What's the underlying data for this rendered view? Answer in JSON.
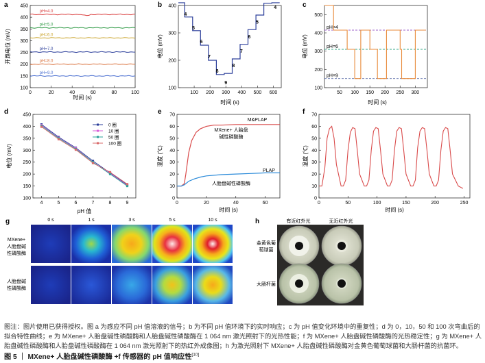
{
  "panels": {
    "a": {
      "letter": "a",
      "ylabel": "开路电位 (mV)",
      "xlabel": "时间 (s)"
    },
    "b": {
      "letter": "b",
      "ylabel": "电位 (mV)",
      "xlabel": "时间 (s)"
    },
    "c": {
      "letter": "c",
      "ylabel": "电位 (mV)",
      "xlabel": "时间 (s)"
    },
    "d": {
      "letter": "d",
      "ylabel": "电位 (mV)",
      "xlabel": "pH 值"
    },
    "e": {
      "letter": "e",
      "ylabel": "温度 (℃)",
      "xlabel": "时间 (s)",
      "label_top": "M&PLAP",
      "label_top2a": "MXene+ 人胎盘",
      "label_top2b": "碱性磷酸酶",
      "label_bot": "PLAP",
      "label_bot2": "人胎盘碱性磷酸酶"
    },
    "f": {
      "letter": "f",
      "ylabel": "温度 (℃)",
      "xlabel": "时间 (s)"
    },
    "g": {
      "letter": "g",
      "times": [
        "0 s",
        "1 s",
        "3 s",
        "5 s",
        "10 s"
      ],
      "row1_l1": "MXene+",
      "row1_l2": "人胎盘碱",
      "row1_l3": "性磷酸酶",
      "row2_l1": "人胎盘碱",
      "row2_l2": "性磷酸酶"
    },
    "h": {
      "letter": "h",
      "col1": "有近红外光",
      "col2": "无近红外光",
      "row1_l1": "金黄色葡",
      "row1_l2": "萄球菌",
      "row2": "大肠杆菌"
    }
  },
  "chart_data": [
    {
      "panel": "a",
      "type": "line",
      "xlim": [
        0,
        100
      ],
      "ylim": [
        100,
        450
      ],
      "xticks": [
        0,
        20,
        40,
        60,
        80,
        100
      ],
      "yticks": [
        100,
        150,
        200,
        250,
        300,
        350,
        400,
        450
      ],
      "series": [
        {
          "name": "pH=4.0",
          "color": "#d93b3b",
          "level": 412
        },
        {
          "name": "pH=5.0",
          "color": "#2f9a45",
          "level": 355
        },
        {
          "name": "pH=6.0",
          "color": "#c9a227",
          "level": 312
        },
        {
          "name": "pH=7.0",
          "color": "#2a3d9a",
          "level": 252
        },
        {
          "name": "pH=8.0",
          "color": "#d9703b",
          "level": 200
        },
        {
          "name": "pH=9.0",
          "color": "#4a6fd0",
          "level": 150
        }
      ]
    },
    {
      "panel": "b",
      "type": "line",
      "xlim": [
        0,
        650
      ],
      "ylim": [
        100,
        400
      ],
      "xticks": [
        100,
        200,
        300,
        400,
        500,
        600
      ],
      "yticks": [
        100,
        200,
        300,
        400
      ],
      "x": [
        0,
        40,
        40,
        90,
        90,
        140,
        140,
        190,
        190,
        240,
        240,
        290,
        290,
        340,
        340,
        390,
        390,
        440,
        440,
        490,
        490,
        540,
        540,
        590,
        590,
        640
      ],
      "y": [
        410,
        410,
        358,
        358,
        308,
        308,
        255,
        255,
        200,
        200,
        148,
        148,
        152,
        152,
        205,
        205,
        258,
        258,
        312,
        312,
        365,
        365,
        408,
        408,
        410,
        410
      ],
      "labels": [
        {
          "text": "4",
          "x": 45,
          "y": 362
        },
        {
          "text": "5",
          "x": 95,
          "y": 312
        },
        {
          "text": "6",
          "x": 145,
          "y": 262
        },
        {
          "text": "7",
          "x": 195,
          "y": 208
        },
        {
          "text": "8",
          "x": 245,
          "y": 155
        },
        {
          "text": "9",
          "x": 300,
          "y": 112
        },
        {
          "text": "8",
          "x": 348,
          "y": 175
        },
        {
          "text": "7",
          "x": 398,
          "y": 228
        },
        {
          "text": "6",
          "x": 448,
          "y": 280
        },
        {
          "text": "5",
          "x": 498,
          "y": 334
        },
        {
          "text": "4",
          "x": 612,
          "y": 388
        }
      ]
    },
    {
      "panel": "c",
      "type": "line",
      "xlim": [
        0,
        340
      ],
      "ylim": [
        100,
        550
      ],
      "xticks": [
        50,
        100,
        150,
        200,
        250,
        300
      ],
      "yticks": [
        100,
        200,
        300,
        400,
        500
      ],
      "levels": [
        {
          "label": "pH=4",
          "value": 415,
          "color": "#9b5fc8"
        },
        {
          "label": "pH=6",
          "value": 310,
          "color": "#3aa88a"
        },
        {
          "label": "pH=9",
          "value": 150,
          "color": "#5b6fa8"
        }
      ],
      "x": [
        0,
        30,
        30,
        75,
        75,
        100,
        100,
        120,
        120,
        150,
        150,
        175,
        175,
        180,
        180,
        205,
        205,
        250,
        250,
        255,
        255,
        280,
        280,
        300,
        300,
        335
      ],
      "y": [
        550,
        550,
        415,
        415,
        310,
        310,
        150,
        150,
        415,
        415,
        310,
        310,
        150,
        150,
        150,
        150,
        415,
        415,
        310,
        310,
        150,
        150,
        150,
        150,
        415,
        415
      ]
    },
    {
      "panel": "d",
      "type": "line",
      "xlim": [
        3.5,
        9.5
      ],
      "ylim": [
        100,
        450
      ],
      "xticks": [
        4,
        5,
        6,
        7,
        8,
        9
      ],
      "yticks": [
        100,
        150,
        200,
        250,
        300,
        350,
        400,
        450
      ],
      "x": [
        4,
        5,
        6,
        7,
        8,
        9
      ],
      "series": [
        {
          "name": "0 圈",
          "color": "#2a3d9a",
          "values": [
            408,
            355,
            310,
            255,
            205,
            155
          ]
        },
        {
          "name": "10 圈",
          "color": "#d95fd9",
          "values": [
            405,
            352,
            308,
            250,
            203,
            152
          ]
        },
        {
          "name": "50 圈",
          "color": "#2aa19a",
          "values": [
            402,
            350,
            305,
            250,
            200,
            150
          ]
        },
        {
          "name": "100 圈",
          "color": "#d96b6b",
          "values": [
            398,
            346,
            302,
            246,
            208,
            158
          ]
        }
      ]
    },
    {
      "panel": "e",
      "type": "line",
      "xlim": [
        0,
        70
      ],
      "ylim": [
        0,
        70
      ],
      "xticks": [
        0,
        20,
        40,
        60
      ],
      "yticks": [
        0,
        10,
        20,
        30,
        40,
        50,
        60,
        70
      ],
      "series": [
        {
          "name": "M&PLAP",
          "color": "#d94a4a",
          "x": [
            0,
            3,
            5,
            6,
            8,
            10,
            13,
            16,
            20,
            25,
            30,
            40,
            50,
            60,
            70
          ],
          "values": [
            10,
            10,
            12,
            20,
            38,
            48,
            55,
            58,
            60,
            61,
            61,
            61.5,
            61.5,
            61.5,
            61.5
          ]
        },
        {
          "name": "PLAP",
          "color": "#2a8ad9",
          "x": [
            0,
            3,
            5,
            8,
            12,
            16,
            20,
            30,
            40,
            50,
            60,
            70
          ],
          "values": [
            10,
            10,
            11,
            14,
            16,
            17.5,
            18.5,
            19.5,
            20,
            20.5,
            21,
            21
          ]
        }
      ]
    },
    {
      "panel": "f",
      "type": "line",
      "xlim": [
        0,
        260
      ],
      "ylim": [
        0,
        70
      ],
      "xticks": [
        0,
        50,
        100,
        150,
        200,
        250
      ],
      "yticks": [
        0,
        10,
        20,
        30,
        40,
        50,
        60,
        70
      ],
      "x": [
        0,
        5,
        10,
        14,
        18,
        22,
        26,
        30,
        38,
        42,
        46,
        50,
        54,
        58,
        62,
        66,
        70,
        78,
        82,
        86,
        90,
        94,
        98,
        102,
        106,
        110,
        118,
        122,
        126,
        130,
        134,
        138,
        142,
        146,
        150,
        158,
        162,
        166,
        170,
        174,
        178,
        182,
        186,
        190,
        198,
        202,
        206,
        210,
        214,
        218,
        222,
        226,
        230,
        240,
        248
      ],
      "values": [
        10,
        10,
        25,
        50,
        58,
        60,
        50,
        28,
        10,
        10,
        15,
        40,
        55,
        59,
        58,
        40,
        20,
        10,
        10,
        15,
        40,
        56,
        59,
        58,
        40,
        20,
        10,
        10,
        15,
        40,
        56,
        59,
        58,
        40,
        20,
        10,
        10,
        15,
        42,
        56,
        59,
        58,
        40,
        20,
        10,
        10,
        15,
        40,
        56,
        59,
        58,
        40,
        20,
        10,
        8
      ]
    }
  ],
  "caption": "图注：图片使用已获得授权。图 a 为感应不同 pH 值溶液的信号；b 为不同 pH 值环境下的实时响应；c 为 pH 值变化环境中的重复性；d 为 0，10，50 和 100 次弯曲后的拟合特性曲线；e 为 MXene+ 人胎盘碱性磷酸酶和人胎盘碱性磷酸酶在 1 064 nm 激光照射下的光热性能；f 为 MXene+ 人胎盘碱性磷酸酶的光热稳定性；g 为 MXene+ 人胎盘碱性磷酸酶和人胎盘碱性磷酸酶在 1 064 nm 激光照射下的热红外成像图；h 为激光照射下 MXene+ 人胎盘碱性磷酸酶对金黄色葡萄球菌和大肠杆菌的抗菌环。",
  "figure_title": "图 5 ｜ MXene+ 人胎盘碱性磷酸酶 +f 传感器的 pH 值响应性",
  "figure_ref": "[10]"
}
